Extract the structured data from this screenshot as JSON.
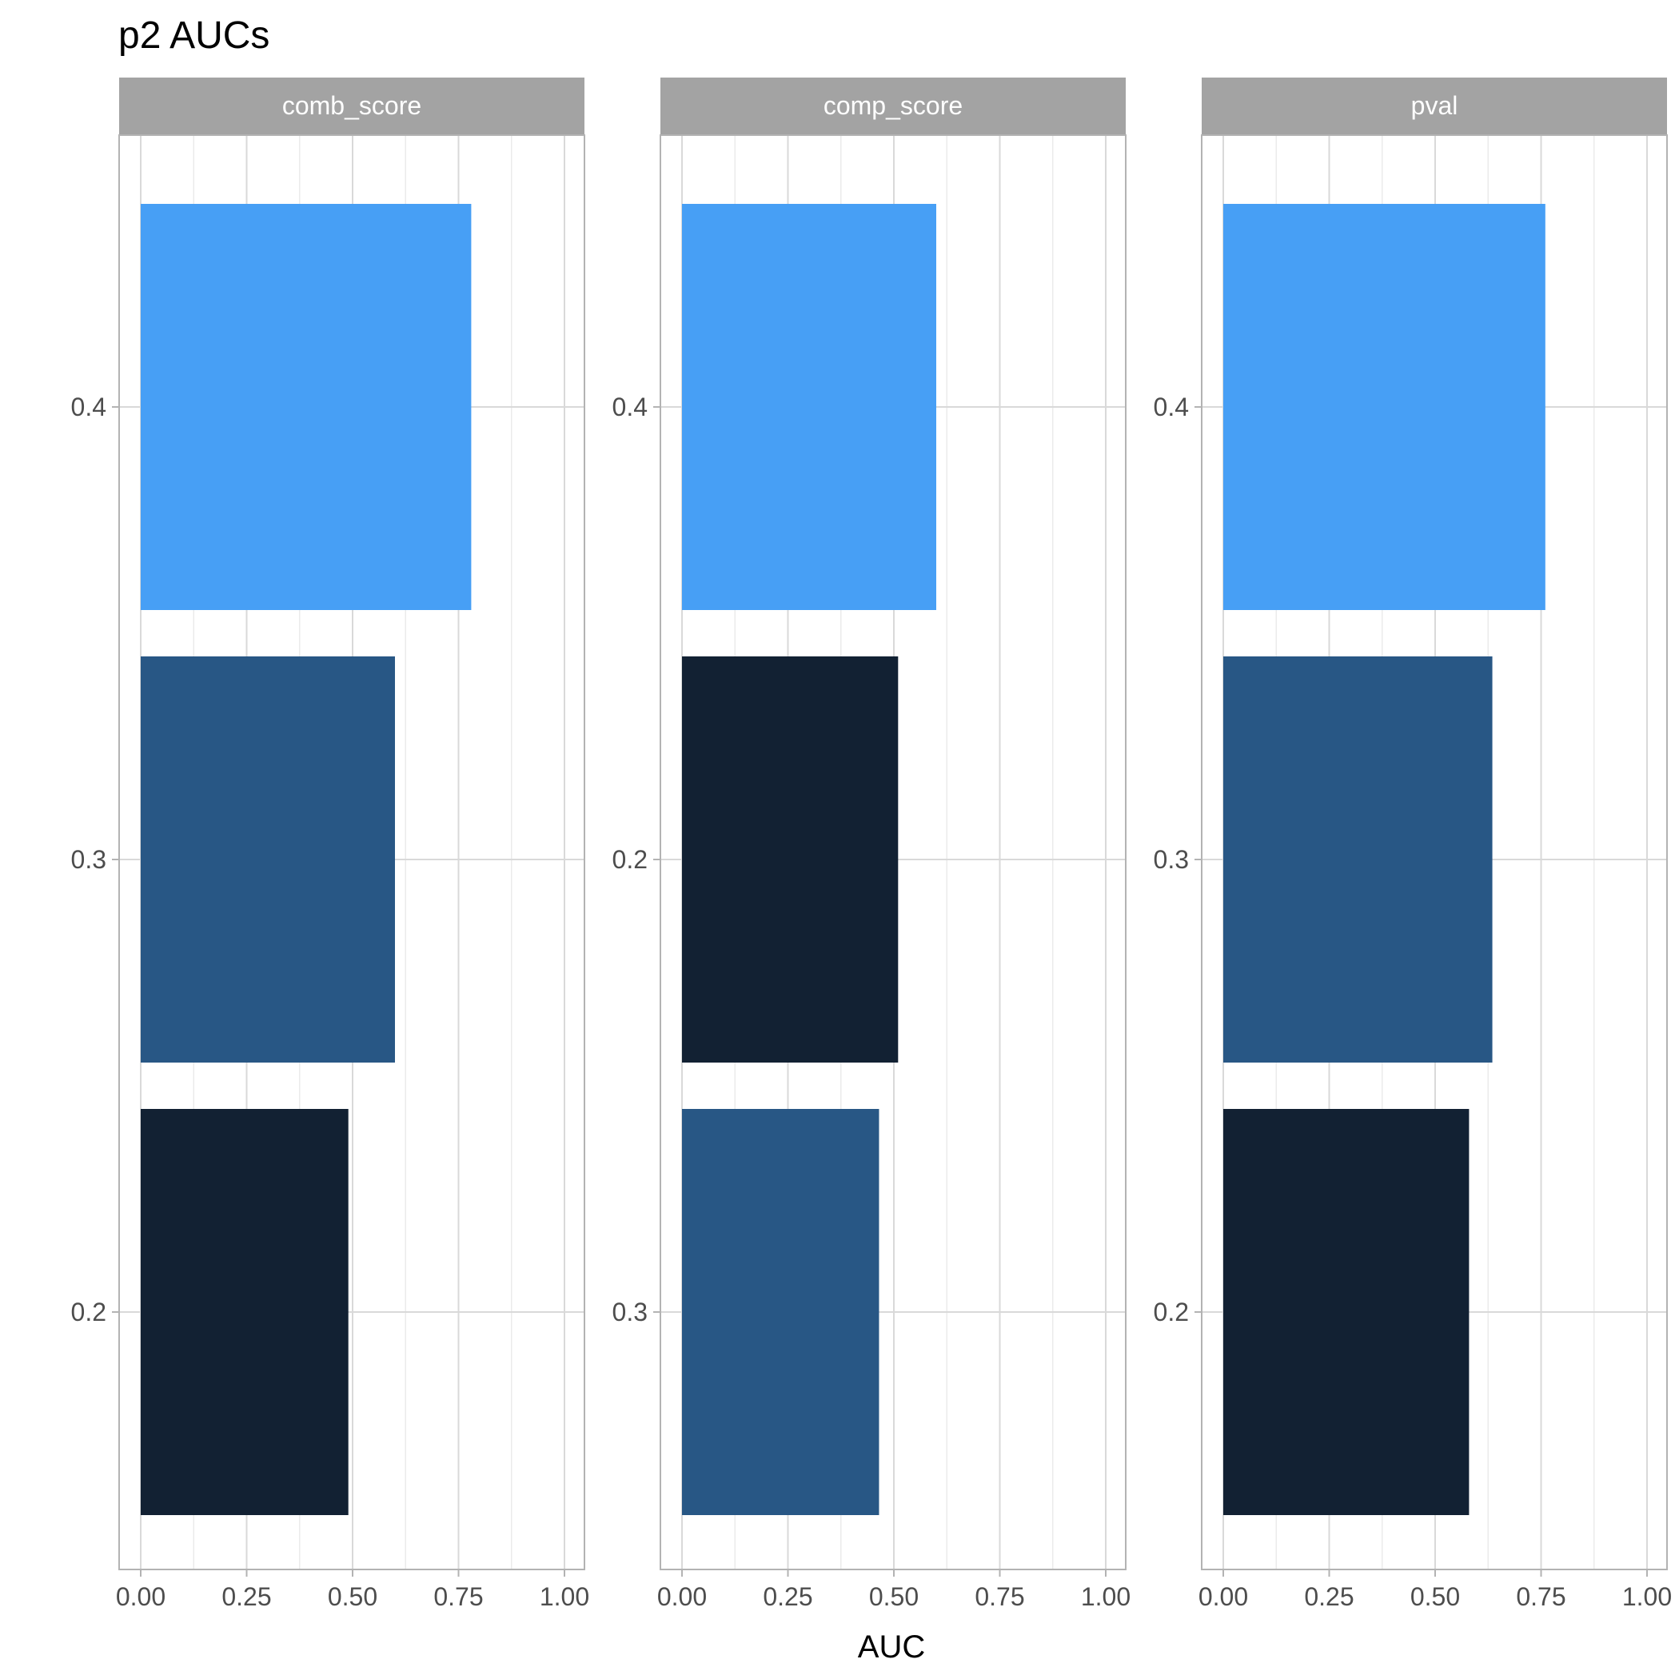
{
  "chart_data": {
    "type": "bar",
    "title": "p2 AUCs",
    "xlabel": "AUC",
    "ylabel": "",
    "xlim": [
      0,
      1
    ],
    "x_ticks": [
      "0.00",
      "0.25",
      "0.50",
      "0.75",
      "1.00"
    ],
    "orientation": "horizontal",
    "grid": true,
    "legend": "none",
    "strip_color": "#a3a3a3",
    "panels": [
      {
        "name": "comb_score",
        "bars": [
          {
            "category": "0.4",
            "value": 0.78,
            "color": "#479ff5"
          },
          {
            "category": "0.3",
            "value": 0.6,
            "color": "#285785"
          },
          {
            "category": "0.2",
            "value": 0.49,
            "color": "#122133"
          }
        ]
      },
      {
        "name": "comp_score",
        "bars": [
          {
            "category": "0.4",
            "value": 0.6,
            "color": "#479ff5"
          },
          {
            "category": "0.2",
            "value": 0.51,
            "color": "#122133"
          },
          {
            "category": "0.3",
            "value": 0.465,
            "color": "#285785"
          }
        ]
      },
      {
        "name": "pval",
        "bars": [
          {
            "category": "0.4",
            "value": 0.76,
            "color": "#479ff5"
          },
          {
            "category": "0.3",
            "value": 0.635,
            "color": "#285785"
          },
          {
            "category": "0.2",
            "value": 0.58,
            "color": "#122133"
          }
        ]
      }
    ]
  }
}
